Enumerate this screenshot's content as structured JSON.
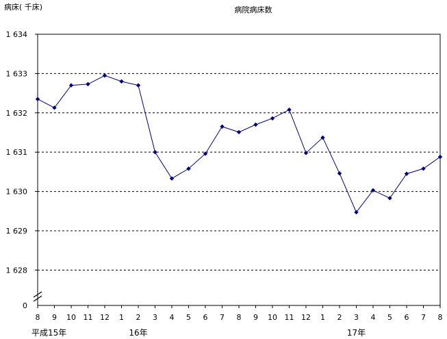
{
  "chart_data": {
    "type": "line",
    "title": "病院病床数",
    "ylabel": "病床( 千床)",
    "xlabel": "",
    "ylim": [
      1627,
      1634
    ],
    "y_ticks": [
      "1 634",
      "1 633",
      "1 632",
      "1 631",
      "1 630",
      "1 629",
      "1 628"
    ],
    "y_tick_values": [
      1634,
      1633,
      1632,
      1631,
      1630,
      1629,
      1628
    ],
    "y_zero_label": "0",
    "y_axis_broken": true,
    "grid": "horizontal-dashed",
    "legend": "none",
    "categories": [
      "8",
      "9",
      "10",
      "11",
      "12",
      "1",
      "2",
      "3",
      "4",
      "5",
      "6",
      "7",
      "8",
      "9",
      "10",
      "11",
      "12",
      "1",
      "2",
      "3",
      "4",
      "5",
      "6",
      "7",
      "8"
    ],
    "year_labels": [
      {
        "index": 0,
        "label": "平成15年"
      },
      {
        "index": 6,
        "label": "16年"
      },
      {
        "index": 19,
        "label": "17年"
      }
    ],
    "series": [
      {
        "values": [
          1632.35,
          1632.13,
          1632.7,
          1632.73,
          1632.95,
          1632.8,
          1632.7,
          1631.0,
          1630.33,
          1630.58,
          1630.96,
          1631.65,
          1631.51,
          1631.7,
          1631.86,
          1632.08,
          1630.98,
          1631.37,
          1630.46,
          1629.47,
          1630.03,
          1629.83,
          1630.45,
          1630.58,
          1630.88
        ],
        "color": "#000080"
      }
    ]
  }
}
